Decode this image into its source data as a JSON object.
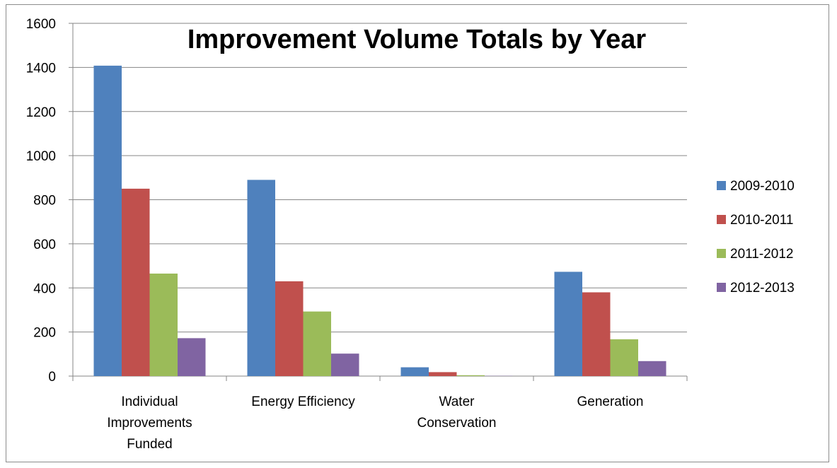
{
  "chart_data": {
    "type": "bar",
    "title": "Improvement Volume Totals by Year",
    "xlabel": "",
    "ylabel": "",
    "ylim": [
      0,
      1600
    ],
    "yticks": [
      0,
      200,
      400,
      600,
      800,
      1000,
      1200,
      1400,
      1600
    ],
    "grid": true,
    "legend_position": "right",
    "categories": [
      [
        "Individual",
        "Improvements",
        "Funded"
      ],
      [
        "Energy Efficiency"
      ],
      [
        "Water",
        "Conservation"
      ],
      [
        "Generation"
      ]
    ],
    "series": [
      {
        "name": "2009-2010",
        "color": "#4f81bd",
        "values": [
          1408,
          890,
          40,
          473
        ]
      },
      {
        "name": "2010-2011",
        "color": "#c0504d",
        "values": [
          850,
          430,
          18,
          380
        ]
      },
      {
        "name": "2011-2012",
        "color": "#9bbb59",
        "values": [
          465,
          293,
          4,
          167
        ]
      },
      {
        "name": "2012-2013",
        "color": "#8064a2",
        "values": [
          172,
          102,
          1,
          68
        ]
      }
    ]
  }
}
